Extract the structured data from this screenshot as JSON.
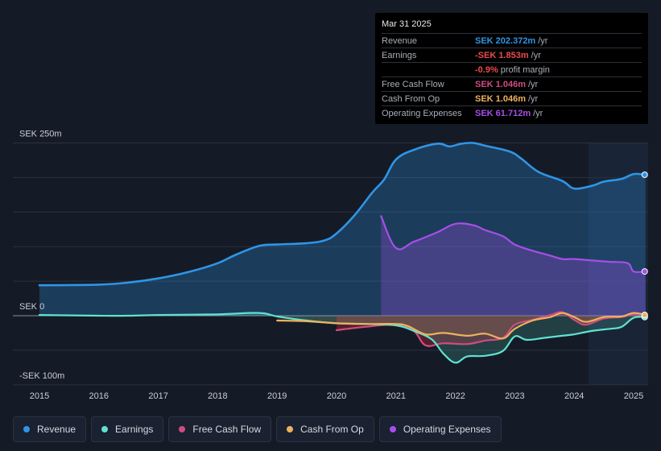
{
  "colors": {
    "revenue": "#2f95e6",
    "earnings": "#5fe3cf",
    "free_cash_flow": "#d04c80",
    "cash_from_op": "#eeb15e",
    "operating_expenses": "#a64fe8"
  },
  "tooltip": {
    "date": "Mar 31 2025",
    "rows": [
      {
        "label": "Revenue",
        "value": "SEK 202.372m",
        "unit": "/yr"
      },
      {
        "label": "Earnings",
        "value": "-SEK 1.853m",
        "unit": "/yr"
      },
      {
        "label": "",
        "value": "-0.9%",
        "unit": "profit margin"
      },
      {
        "label": "Free Cash Flow",
        "value": "SEK 1.046m",
        "unit": "/yr"
      },
      {
        "label": "Cash From Op",
        "value": "SEK 1.046m",
        "unit": "/yr"
      },
      {
        "label": "Operating Expenses",
        "value": "SEK 61.712m",
        "unit": "/yr"
      }
    ]
  },
  "legend": [
    {
      "key": "revenue",
      "label": "Revenue"
    },
    {
      "key": "earnings",
      "label": "Earnings"
    },
    {
      "key": "free_cash_flow",
      "label": "Free Cash Flow"
    },
    {
      "key": "cash_from_op",
      "label": "Cash From Op"
    },
    {
      "key": "operating_expenses",
      "label": "Operating Expenses"
    }
  ],
  "chart_data": {
    "type": "area",
    "title": "",
    "currency_unit": "SEK m",
    "ylim": [
      -100,
      250
    ],
    "y_ticks": [
      {
        "value": 250,
        "label": "SEK 250m"
      },
      {
        "value": 0,
        "label": "SEK 0"
      },
      {
        "value": -100,
        "label": "-SEK 100m"
      }
    ],
    "xlim": [
      2014.8,
      2025.25
    ],
    "x_ticks": [
      "2015",
      "2016",
      "2017",
      "2018",
      "2019",
      "2020",
      "2021",
      "2022",
      "2023",
      "2024",
      "2025"
    ],
    "highlight_from": 2024.25,
    "series": [
      {
        "key": "revenue",
        "name": "Revenue",
        "points": [
          [
            2015.0,
            44
          ],
          [
            2016.0,
            45
          ],
          [
            2016.5,
            48
          ],
          [
            2017.0,
            54
          ],
          [
            2017.5,
            63
          ],
          [
            2018.0,
            76
          ],
          [
            2018.3,
            88
          ],
          [
            2018.7,
            101
          ],
          [
            2019.0,
            103
          ],
          [
            2019.5,
            105
          ],
          [
            2019.8,
            109
          ],
          [
            2020.0,
            119
          ],
          [
            2020.3,
            145
          ],
          [
            2020.6,
            178
          ],
          [
            2020.8,
            197
          ],
          [
            2021.0,
            226
          ],
          [
            2021.3,
            240
          ],
          [
            2021.7,
            249
          ],
          [
            2021.9,
            245
          ],
          [
            2022.1,
            249
          ],
          [
            2022.3,
            250
          ],
          [
            2022.5,
            246
          ],
          [
            2022.9,
            238
          ],
          [
            2023.1,
            228
          ],
          [
            2023.4,
            208
          ],
          [
            2023.8,
            195
          ],
          [
            2024.0,
            184
          ],
          [
            2024.3,
            188
          ],
          [
            2024.5,
            194
          ],
          [
            2024.8,
            198
          ],
          [
            2025.0,
            205
          ],
          [
            2025.2,
            204
          ]
        ]
      },
      {
        "key": "earnings",
        "name": "Earnings",
        "points": [
          [
            2015.0,
            1
          ],
          [
            2016.0,
            0
          ],
          [
            2016.5,
            0
          ],
          [
            2017.0,
            1
          ],
          [
            2018.0,
            2
          ],
          [
            2018.7,
            4
          ],
          [
            2019.0,
            -1
          ],
          [
            2019.5,
            -7
          ],
          [
            2020.0,
            -11
          ],
          [
            2020.5,
            -12
          ],
          [
            2021.0,
            -14
          ],
          [
            2021.3,
            -22
          ],
          [
            2021.6,
            -34
          ],
          [
            2021.8,
            -55
          ],
          [
            2022.0,
            -68
          ],
          [
            2022.2,
            -59
          ],
          [
            2022.5,
            -58
          ],
          [
            2022.8,
            -51
          ],
          [
            2023.0,
            -30
          ],
          [
            2023.2,
            -35
          ],
          [
            2023.5,
            -32
          ],
          [
            2023.8,
            -29
          ],
          [
            2024.0,
            -27
          ],
          [
            2024.3,
            -22
          ],
          [
            2024.6,
            -19
          ],
          [
            2024.8,
            -16
          ],
          [
            2025.0,
            -3
          ],
          [
            2025.2,
            -2
          ]
        ]
      },
      {
        "key": "free_cash_flow",
        "name": "Free Cash Flow",
        "points": [
          [
            2020.0,
            -21
          ],
          [
            2020.5,
            -16
          ],
          [
            2021.0,
            -13
          ],
          [
            2021.3,
            -22
          ],
          [
            2021.5,
            -43
          ],
          [
            2021.8,
            -40
          ],
          [
            2022.2,
            -41
          ],
          [
            2022.5,
            -36
          ],
          [
            2022.8,
            -32
          ],
          [
            2023.0,
            -13
          ],
          [
            2023.3,
            -6
          ],
          [
            2023.6,
            1
          ],
          [
            2023.8,
            5
          ],
          [
            2024.0,
            -6
          ],
          [
            2024.2,
            -13
          ],
          [
            2024.5,
            -4
          ],
          [
            2024.8,
            -2
          ],
          [
            2025.0,
            2
          ],
          [
            2025.2,
            1
          ]
        ]
      },
      {
        "key": "cash_from_op",
        "name": "Cash From Op",
        "points": [
          [
            2019.0,
            -7
          ],
          [
            2019.5,
            -8
          ],
          [
            2020.0,
            -11
          ],
          [
            2020.5,
            -12
          ],
          [
            2021.0,
            -12
          ],
          [
            2021.2,
            -15
          ],
          [
            2021.5,
            -27
          ],
          [
            2021.8,
            -25
          ],
          [
            2022.2,
            -29
          ],
          [
            2022.5,
            -26
          ],
          [
            2022.8,
            -33
          ],
          [
            2023.0,
            -19
          ],
          [
            2023.3,
            -7
          ],
          [
            2023.6,
            -2
          ],
          [
            2023.8,
            4
          ],
          [
            2024.0,
            -2
          ],
          [
            2024.2,
            -9
          ],
          [
            2024.5,
            -2
          ],
          [
            2024.8,
            -1
          ],
          [
            2025.0,
            4
          ],
          [
            2025.2,
            1
          ]
        ]
      },
      {
        "key": "operating_expenses",
        "name": "Operating Expenses",
        "points": [
          [
            2020.75,
            144
          ],
          [
            2021.0,
            98
          ],
          [
            2021.3,
            107
          ],
          [
            2021.7,
            121
          ],
          [
            2022.0,
            133
          ],
          [
            2022.3,
            131
          ],
          [
            2022.5,
            124
          ],
          [
            2022.8,
            115
          ],
          [
            2023.0,
            103
          ],
          [
            2023.3,
            94
          ],
          [
            2023.6,
            87
          ],
          [
            2023.8,
            82
          ],
          [
            2024.0,
            82
          ],
          [
            2024.3,
            80
          ],
          [
            2024.6,
            78
          ],
          [
            2024.9,
            76
          ],
          [
            2025.0,
            64
          ],
          [
            2025.2,
            64
          ]
        ]
      }
    ]
  }
}
